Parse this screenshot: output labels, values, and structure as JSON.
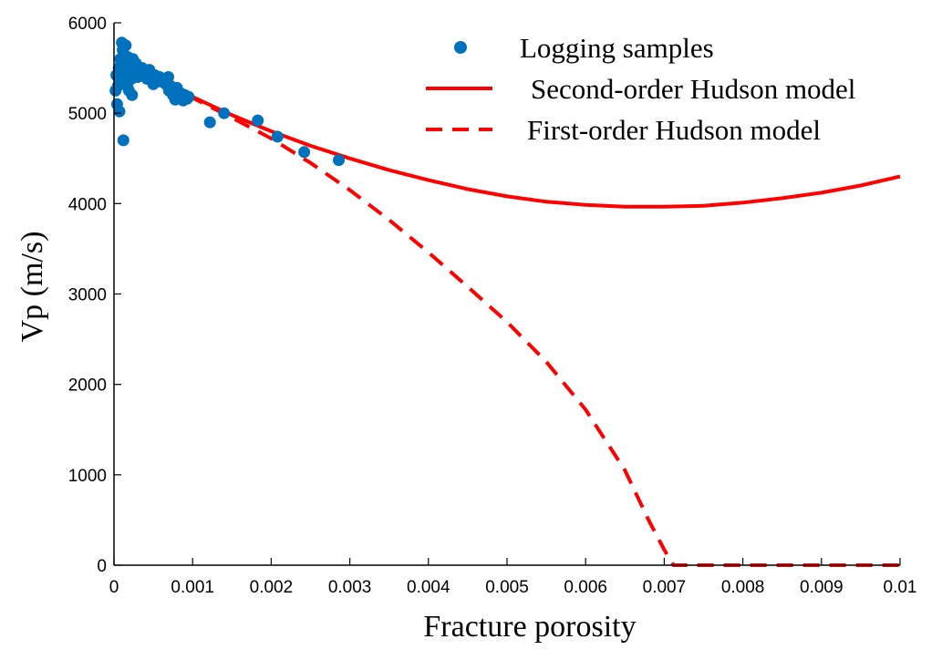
{
  "chart_data": {
    "type": "scatter",
    "xlabel": "Fracture porosity",
    "ylabel": "Vp (m/s)",
    "xlim": [
      0,
      0.01
    ],
    "ylim": [
      0,
      6000
    ],
    "x_ticks": [
      {
        "value": 0,
        "label": "0"
      },
      {
        "value": 0.001,
        "label": "0.001"
      },
      {
        "value": 0.002,
        "label": "0.002"
      },
      {
        "value": 0.003,
        "label": "0.003"
      },
      {
        "value": 0.004,
        "label": "0.004"
      },
      {
        "value": 0.005,
        "label": "0.005"
      },
      {
        "value": 0.006,
        "label": "0.006"
      },
      {
        "value": 0.007,
        "label": "0.007"
      },
      {
        "value": 0.008,
        "label": "0.008"
      },
      {
        "value": 0.009,
        "label": "0.009"
      },
      {
        "value": 0.01,
        "label": "0.01"
      }
    ],
    "y_ticks": [
      {
        "value": 0,
        "label": "0"
      },
      {
        "value": 1000,
        "label": "1000"
      },
      {
        "value": 2000,
        "label": "2000"
      },
      {
        "value": 3000,
        "label": "3000"
      },
      {
        "value": 4000,
        "label": "4000"
      },
      {
        "value": 5000,
        "label": "5000"
      },
      {
        "value": 6000,
        "label": "6000"
      }
    ],
    "grid": false,
    "legend_position": "top-right",
    "series": [
      {
        "name": "Logging samples",
        "kind": "scatter",
        "color": "#0072BD",
        "points": [
          [
            2e-05,
            5250
          ],
          [
            3e-05,
            5420
          ],
          [
            4e-05,
            5100
          ],
          [
            5e-05,
            5300
          ],
          [
            6e-05,
            5500
          ],
          [
            7e-05,
            5020
          ],
          [
            8e-05,
            5600
          ],
          [
            9e-05,
            5350
          ],
          [
            0.0001,
            5780
          ],
          [
            0.0001,
            5550
          ],
          [
            0.00011,
            5700
          ],
          [
            0.00012,
            5450
          ],
          [
            0.00012,
            4700
          ],
          [
            0.00013,
            5650
          ],
          [
            0.00014,
            5400
          ],
          [
            0.00015,
            5750
          ],
          [
            0.00016,
            5520
          ],
          [
            0.00017,
            5300
          ],
          [
            0.00018,
            5620
          ],
          [
            0.00019,
            5250
          ],
          [
            0.0002,
            5480
          ],
          [
            0.00021,
            5580
          ],
          [
            0.00022,
            5380
          ],
          [
            0.00023,
            5200
          ],
          [
            0.00024,
            5600
          ],
          [
            0.00026,
            5450
          ],
          [
            0.00028,
            5550
          ],
          [
            0.0003,
            5400
          ],
          [
            0.00032,
            5480
          ],
          [
            0.00034,
            5420
          ],
          [
            0.00036,
            5500
          ],
          [
            0.0004,
            5450
          ],
          [
            0.00042,
            5380
          ],
          [
            0.00045,
            5480
          ],
          [
            0.00048,
            5400
          ],
          [
            0.0005,
            5320
          ],
          [
            0.00052,
            5420
          ],
          [
            0.00055,
            5380
          ],
          [
            0.00058,
            5400
          ],
          [
            0.0006,
            5350
          ],
          [
            0.00063,
            5380
          ],
          [
            0.00066,
            5320
          ],
          [
            0.00069,
            5400
          ],
          [
            0.0007,
            5250
          ],
          [
            0.00072,
            5300
          ],
          [
            0.00075,
            5200
          ],
          [
            0.00078,
            5150
          ],
          [
            0.0008,
            5280
          ],
          [
            0.00083,
            5180
          ],
          [
            0.00085,
            5220
          ],
          [
            0.00088,
            5140
          ],
          [
            0.0009,
            5200
          ],
          [
            0.00093,
            5160
          ],
          [
            0.00095,
            5180
          ],
          [
            0.00122,
            4900
          ],
          [
            0.0014,
            5000
          ],
          [
            0.00183,
            4920
          ],
          [
            0.00208,
            4740
          ],
          [
            0.00242,
            4570
          ],
          [
            0.00286,
            4480
          ]
        ]
      },
      {
        "name": "Second-order Hudson model",
        "kind": "line",
        "color": "#FF0000",
        "dash": "solid",
        "points": [
          [
            0,
            5520
          ],
          [
            0.0005,
            5360
          ],
          [
            0.001,
            5180
          ],
          [
            0.0015,
            4980
          ],
          [
            0.002,
            4800
          ],
          [
            0.0025,
            4640
          ],
          [
            0.003,
            4500
          ],
          [
            0.0035,
            4370
          ],
          [
            0.004,
            4260
          ],
          [
            0.0045,
            4160
          ],
          [
            0.005,
            4080
          ],
          [
            0.0055,
            4020
          ],
          [
            0.006,
            3985
          ],
          [
            0.0065,
            3965
          ],
          [
            0.007,
            3965
          ],
          [
            0.0075,
            3975
          ],
          [
            0.008,
            4010
          ],
          [
            0.0085,
            4060
          ],
          [
            0.009,
            4120
          ],
          [
            0.0095,
            4200
          ],
          [
            0.01,
            4300
          ]
        ]
      },
      {
        "name": "First-order Hudson model",
        "kind": "line",
        "color": "#FF0000",
        "dash": "dashed",
        "points": [
          [
            0,
            5520
          ],
          [
            0.0005,
            5370
          ],
          [
            0.001,
            5170
          ],
          [
            0.0015,
            4950
          ],
          [
            0.002,
            4720
          ],
          [
            0.0025,
            4450
          ],
          [
            0.003,
            4150
          ],
          [
            0.0035,
            3820
          ],
          [
            0.004,
            3460
          ],
          [
            0.0045,
            3080
          ],
          [
            0.005,
            2690
          ],
          [
            0.0055,
            2250
          ],
          [
            0.006,
            1720
          ],
          [
            0.0065,
            1050
          ],
          [
            0.0068,
            500
          ],
          [
            0.007,
            170
          ],
          [
            0.00712,
            0
          ],
          [
            0.008,
            0
          ],
          [
            0.009,
            0
          ],
          [
            0.01,
            0
          ]
        ]
      }
    ]
  }
}
